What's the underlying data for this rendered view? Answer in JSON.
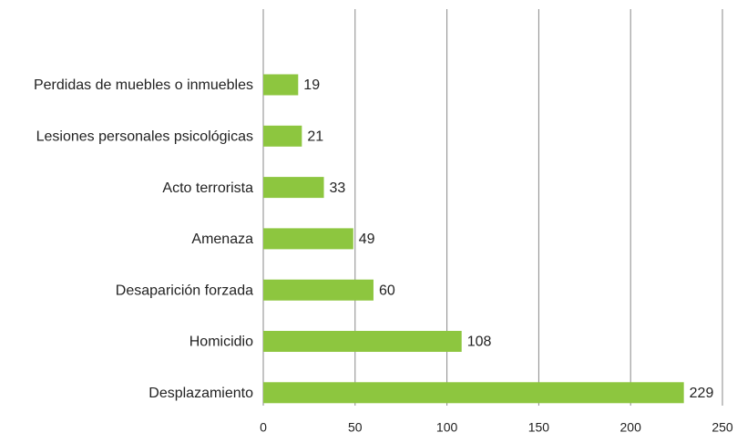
{
  "chart_data": {
    "type": "bar",
    "orientation": "horizontal",
    "categories": [
      "Perdidas de muebles o inmuebles",
      "Lesiones personales psicológicas",
      "Acto terrorista",
      "Amenaza",
      "Desaparición forzada",
      "Homicidio",
      "Desplazamiento"
    ],
    "values": [
      19,
      21,
      33,
      49,
      60,
      108,
      229
    ],
    "color": "#8dc63f",
    "xlim": [
      0,
      250
    ],
    "xticks": [
      0,
      50,
      100,
      150,
      200,
      250
    ],
    "grid": true
  }
}
